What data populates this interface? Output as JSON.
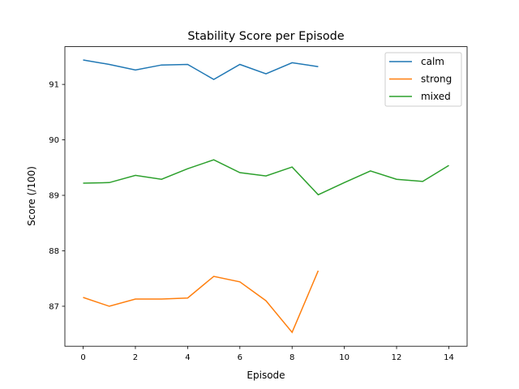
{
  "chart_data": {
    "type": "line",
    "title": "Stability Score per Episode",
    "xlabel": "Episode",
    "ylabel": "Score (/100)",
    "xlim": [
      -0.7,
      14.7
    ],
    "ylim": [
      86.28,
      91.68
    ],
    "xticks": [
      0,
      2,
      4,
      6,
      8,
      10,
      12,
      14
    ],
    "yticks": [
      87,
      88,
      89,
      90,
      91
    ],
    "grid": false,
    "legend_position": "top-right",
    "series": [
      {
        "name": "calm",
        "color": "#1f77b4",
        "x": [
          0,
          1,
          2,
          3,
          4,
          5,
          6,
          7,
          8,
          9
        ],
        "values": [
          91.44,
          91.36,
          91.26,
          91.35,
          91.36,
          91.09,
          91.36,
          91.19,
          91.39,
          91.32
        ]
      },
      {
        "name": "strong",
        "color": "#ff7f0e",
        "x": [
          0,
          1,
          2,
          3,
          4,
          5,
          6,
          7,
          8,
          9
        ],
        "values": [
          87.16,
          87.0,
          87.13,
          87.13,
          87.15,
          87.54,
          87.44,
          87.1,
          86.53,
          87.64
        ]
      },
      {
        "name": "mixed",
        "color": "#2ca02c",
        "x": [
          0,
          1,
          2,
          3,
          4,
          5,
          6,
          7,
          8,
          9,
          10,
          11,
          12,
          13,
          14
        ],
        "values": [
          89.22,
          89.23,
          89.36,
          89.29,
          89.48,
          89.64,
          89.41,
          89.35,
          89.51,
          89.01,
          89.23,
          89.44,
          89.29,
          89.25,
          89.54
        ]
      }
    ]
  }
}
